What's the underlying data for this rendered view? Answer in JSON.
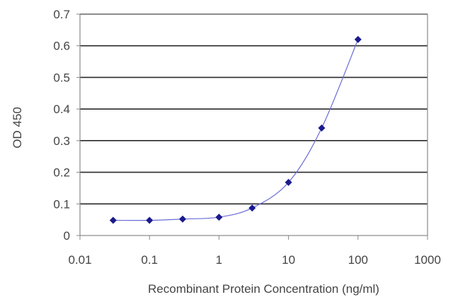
{
  "chart_data": {
    "type": "scatter",
    "title": "",
    "xlabel": "Recombinant Protein Concentration (ng/ml)",
    "ylabel": "OD 450",
    "x_scale": "log",
    "xlim": [
      0.01,
      1000
    ],
    "ylim": [
      0,
      0.7
    ],
    "x_ticks": [
      0.01,
      0.1,
      1,
      10,
      100,
      1000
    ],
    "x_tick_labels": [
      "0.01",
      "0.1",
      "1",
      "10",
      "100",
      "1000"
    ],
    "y_ticks": [
      0,
      0.1,
      0.2,
      0.3,
      0.4,
      0.5,
      0.6,
      0.7
    ],
    "y_tick_labels": [
      "0",
      "0.1",
      "0.2",
      "0.3",
      "0.4",
      "0.5",
      "0.6",
      "0.7"
    ],
    "grid": "horizontal",
    "legend": "none",
    "series": [
      {
        "x": [
          0.03,
          0.1,
          0.3,
          1,
          3,
          10,
          30,
          100
        ],
        "y": [
          0.048,
          0.048,
          0.052,
          0.058,
          0.087,
          0.168,
          0.34,
          0.62
        ],
        "marker": "diamond",
        "line": "smooth",
        "color": "#1a1a8c",
        "line_color": "#6a6ad8"
      }
    ],
    "colors": {
      "gridline": "#2a2a2a",
      "plot_border": "#888888",
      "text": "#444444"
    }
  }
}
